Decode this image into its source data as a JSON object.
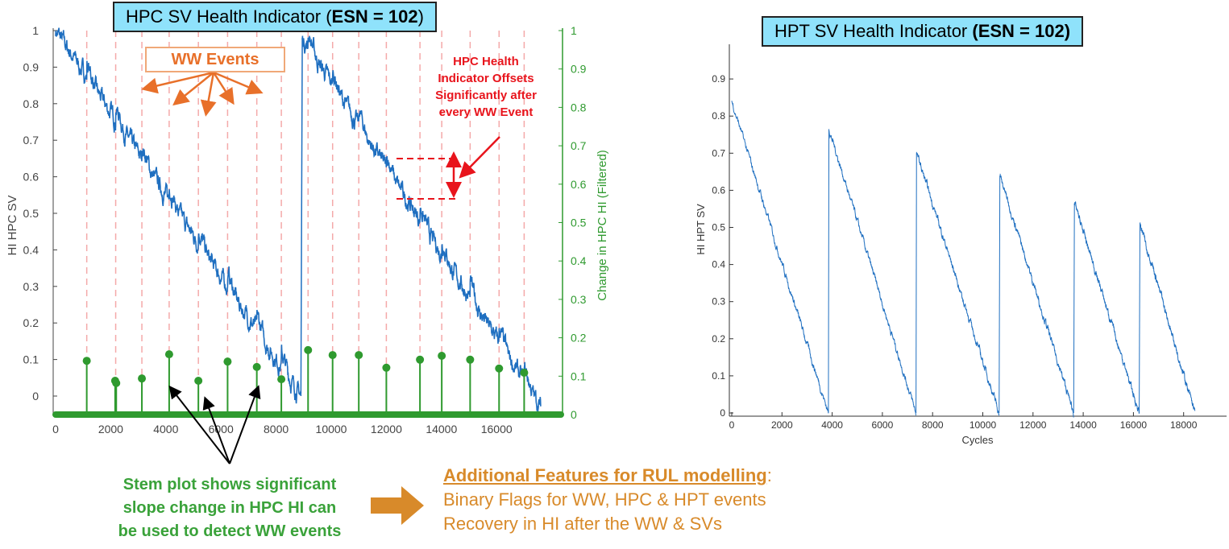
{
  "left_title": {
    "text": "HPC SV Health Indicator (",
    "bold": "ESN = 102",
    "close": ")"
  },
  "right_title": {
    "text": "HPT SV Health Indicator ",
    "bold": "(ESN = 102)"
  },
  "annotations": {
    "ww_events": "WW Events",
    "offset_note": [
      "HPC Health",
      "Indicator Offsets",
      "Significantly after",
      "every WW Event"
    ],
    "stem_note": [
      "Stem plot shows significant",
      "slope change in HPC HI can",
      "be used to detect WW events"
    ],
    "features_heading": "Additional  Features for RUL modelling",
    "features_colon": ":",
    "features": [
      "Binary Flags for WW, HPC & HPT events",
      "Recovery in HI after the WW & SVs"
    ]
  },
  "colors": {
    "line": "#1f6fc0",
    "stem": "#2f9a2f",
    "event": "#f4a9a9",
    "red": "#e8141c",
    "orange": "#e8702a",
    "arrow": "#d88a2a"
  },
  "chart_data": [
    {
      "type": "line+stem",
      "title": "HPC SV Health Indicator (ESN = 102)",
      "xlabel": "",
      "ylabel": "HI HPC SV",
      "y2label": "Change in HPC HI (Filtered)",
      "xlim": [
        0,
        18400
      ],
      "ylim": [
        -0.05,
        1
      ],
      "y2lim": [
        0,
        1
      ],
      "xticks": [
        0,
        2000,
        4000,
        6000,
        8000,
        10000,
        12000,
        14000,
        16000
      ],
      "yticks": [
        0,
        0.1,
        0.2,
        0.3,
        0.4,
        0.5,
        0.6,
        0.7,
        0.8,
        0.9,
        1
      ],
      "y2ticks": [
        0,
        0.1,
        0.2,
        0.3,
        0.4,
        0.5,
        0.6,
        0.7,
        0.8,
        0.9,
        1
      ],
      "hi_segments": [
        {
          "x0": 0,
          "y0": 1.0,
          "x1": 8900,
          "y1": 0.0
        },
        {
          "x0": 8950,
          "y0": 0.98,
          "x1": 17600,
          "y1": -0.03
        }
      ],
      "ww_events": [
        1130,
        2180,
        3130,
        4120,
        5180,
        6240,
        7300,
        8190,
        9160,
        10050,
        11000,
        12000,
        13220,
        14010,
        15040,
        16090,
        17000
      ],
      "stems": [
        {
          "x": 1130,
          "y": 0.14
        },
        {
          "x": 2160,
          "y": 0.088
        },
        {
          "x": 2200,
          "y": 0.082
        },
        {
          "x": 3130,
          "y": 0.094
        },
        {
          "x": 4120,
          "y": 0.157
        },
        {
          "x": 5180,
          "y": 0.088
        },
        {
          "x": 6240,
          "y": 0.138
        },
        {
          "x": 7300,
          "y": 0.124
        },
        {
          "x": 8190,
          "y": 0.092
        },
        {
          "x": 9160,
          "y": 0.168
        },
        {
          "x": 10050,
          "y": 0.155
        },
        {
          "x": 11000,
          "y": 0.155
        },
        {
          "x": 12000,
          "y": 0.122
        },
        {
          "x": 13220,
          "y": 0.143
        },
        {
          "x": 14010,
          "y": 0.153
        },
        {
          "x": 15040,
          "y": 0.143
        },
        {
          "x": 16090,
          "y": 0.12
        },
        {
          "x": 17000,
          "y": 0.109
        }
      ]
    },
    {
      "type": "line",
      "title": "HPT SV Health Indicator (ESN = 102)",
      "xlabel": "Cycles",
      "ylabel": "HI HPT SV",
      "xlim": [
        0,
        20000
      ],
      "ylim": [
        0,
        0.97
      ],
      "xticks": [
        0,
        2000,
        4000,
        6000,
        8000,
        10000,
        12000,
        14000,
        16000,
        18000
      ],
      "yticks": [
        0,
        0.1,
        0.2,
        0.3,
        0.4,
        0.5,
        0.6,
        0.7,
        0.8,
        0.9
      ],
      "segments": [
        {
          "x0": 0,
          "y0": 0.84,
          "x1": 3850,
          "y1": 0
        },
        {
          "x0": 3870,
          "y0": 0.765,
          "x1": 7340,
          "y1": 0
        },
        {
          "x0": 7360,
          "y0": 0.7,
          "x1": 10650,
          "y1": 0
        },
        {
          "x0": 10680,
          "y0": 0.64,
          "x1": 13620,
          "y1": 0
        },
        {
          "x0": 13650,
          "y0": 0.565,
          "x1": 16230,
          "y1": 0
        },
        {
          "x0": 16260,
          "y0": 0.51,
          "x1": 18450,
          "y1": 0
        }
      ]
    }
  ]
}
